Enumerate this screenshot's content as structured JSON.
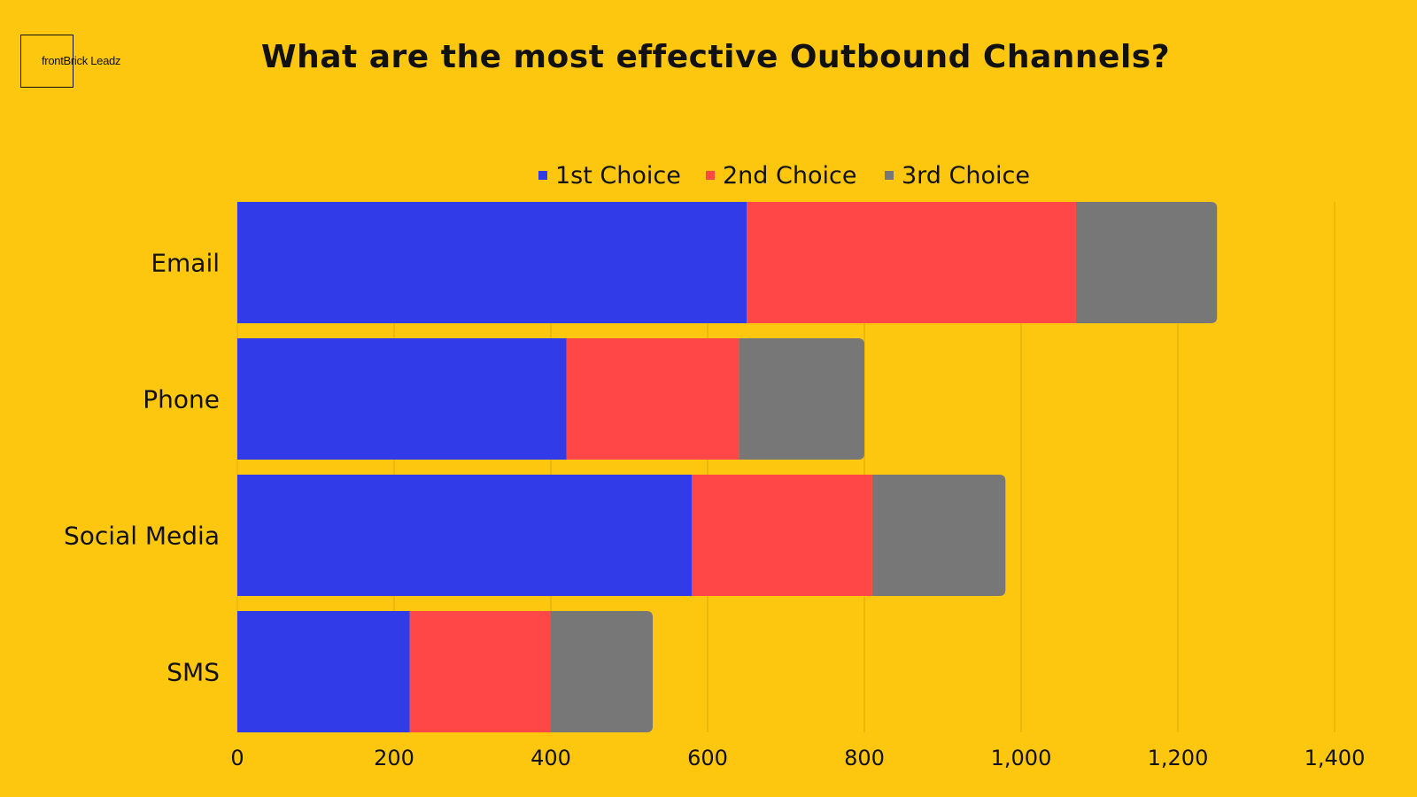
{
  "logo": {
    "text": "frontBrick Leadz"
  },
  "chart_data": {
    "type": "bar",
    "orientation": "horizontal",
    "stacked": true,
    "title": "What are the most effective Outbound Channels?",
    "categories": [
      "Email",
      "Phone",
      "Social Media",
      "SMS"
    ],
    "series": [
      {
        "name": "1st Choice",
        "color": "#323BE8",
        "values": [
          650,
          420,
          580,
          220
        ]
      },
      {
        "name": "2nd Choice",
        "color": "#FF4747",
        "values": [
          420,
          220,
          230,
          180
        ]
      },
      {
        "name": "3rd Choice",
        "color": "#777777",
        "values": [
          180,
          160,
          170,
          130
        ]
      }
    ],
    "xlim": [
      0,
      1400
    ],
    "xticks": [
      0,
      200,
      400,
      600,
      800,
      1000,
      1200,
      1400
    ],
    "xtick_labels": [
      "0",
      "200",
      "400",
      "600",
      "800",
      "1,000",
      "1,200",
      "1,400"
    ],
    "xlabel": "",
    "ylabel": "",
    "grid": "vertical",
    "legend_position": "top-center"
  }
}
